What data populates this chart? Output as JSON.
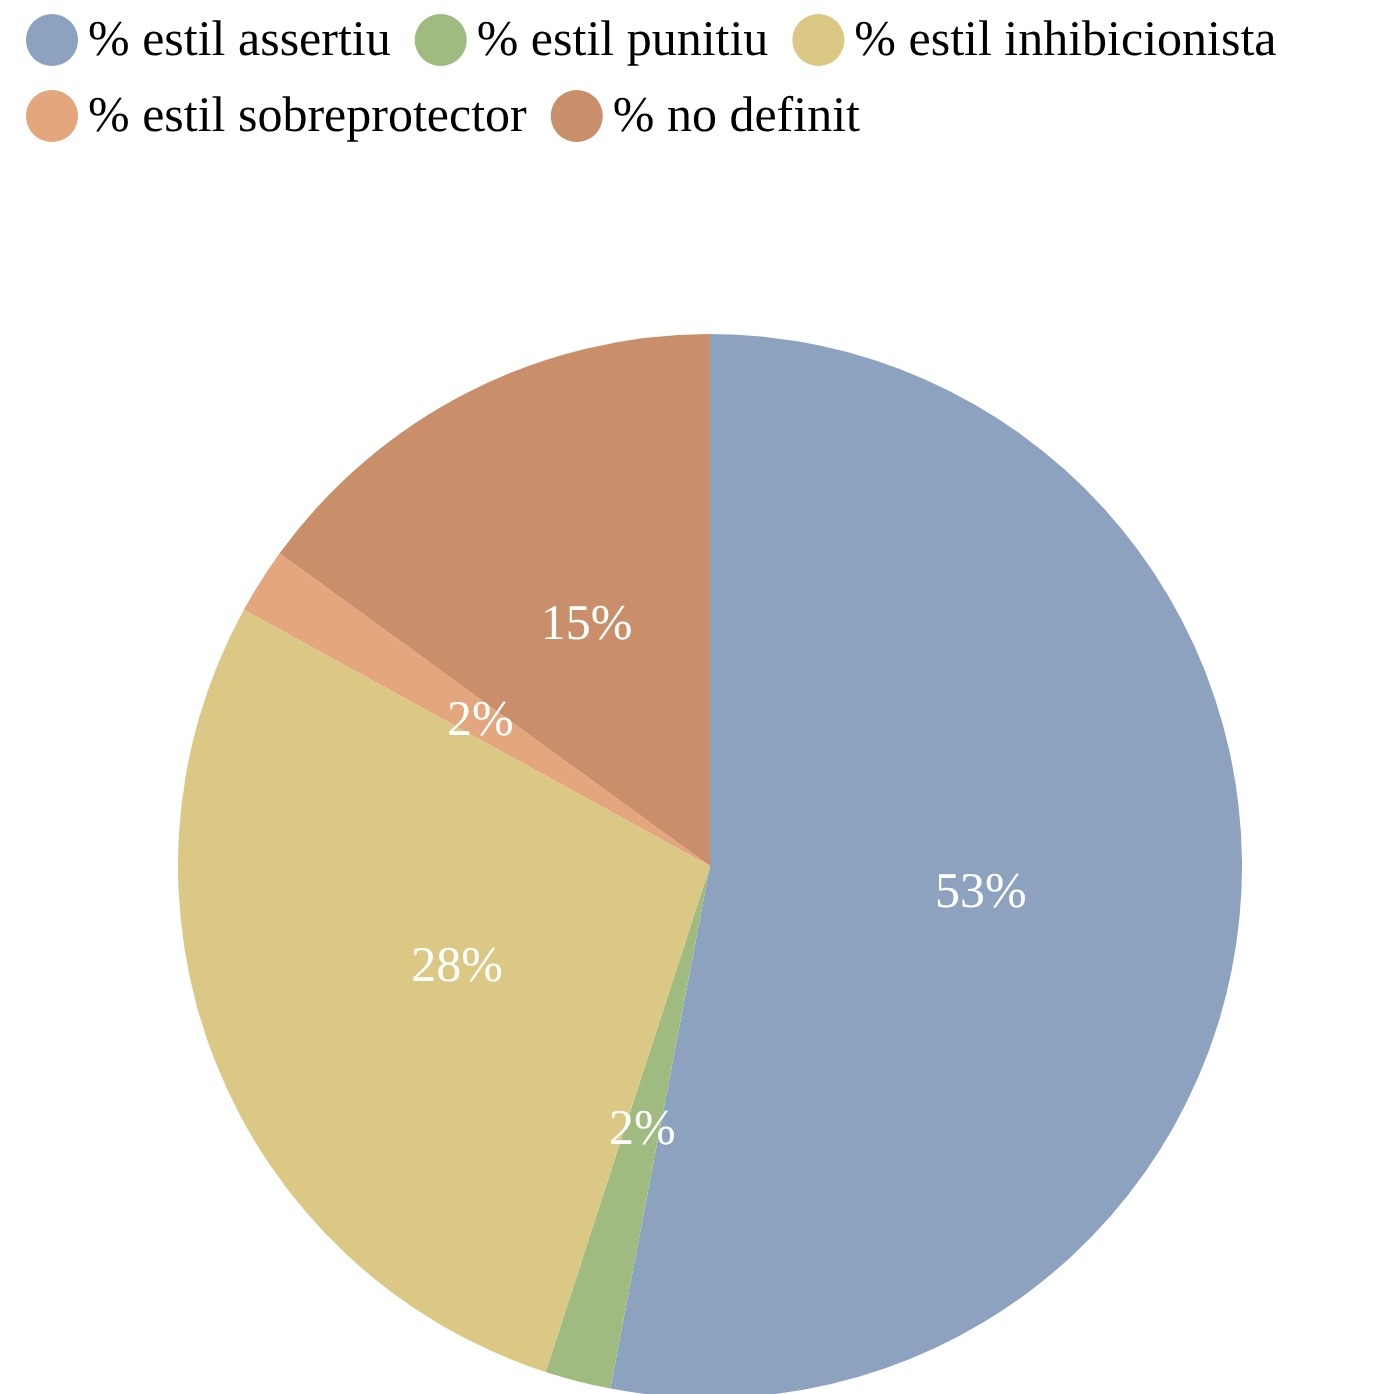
{
  "chart_data": {
    "type": "pie",
    "categories": [
      "% estil assertiu",
      "% estil punitiu",
      "% estil inhibicionista",
      "% estil sobreprotector",
      "% no definit"
    ],
    "values": [
      53,
      2,
      28,
      2,
      15
    ],
    "colors": [
      "#8da2bf",
      "#a0bb80",
      "#dcc885",
      "#e4a67c",
      "#c98e6a"
    ],
    "value_labels": [
      "53%",
      "2%",
      "28%",
      "2%",
      "15%"
    ],
    "legend": "top left"
  }
}
